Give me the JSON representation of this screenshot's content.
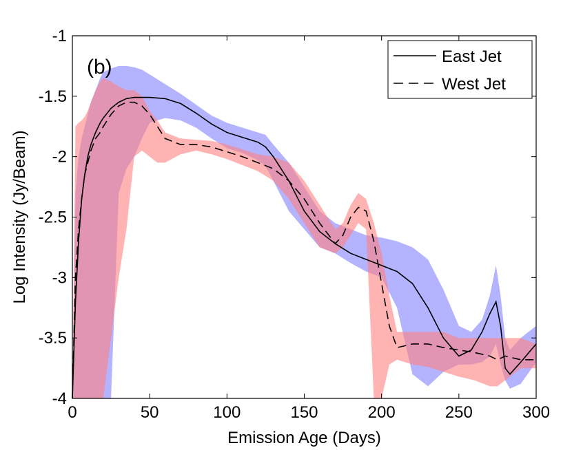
{
  "chart_data": {
    "type": "line",
    "panel_label": "(b)",
    "xlabel": "Emission Age (Days)",
    "ylabel": "Log Intensity (Jy/Beam)",
    "xlim": [
      0,
      300
    ],
    "ylim": [
      -4,
      -1
    ],
    "x_ticks": [
      0,
      50,
      100,
      150,
      200,
      250,
      300
    ],
    "y_ticks": [
      -4,
      -3.5,
      -3,
      -2.5,
      -2,
      -1.5,
      -1
    ],
    "x_tick_labels": [
      "0",
      "50",
      "100",
      "150",
      "200",
      "250",
      "300"
    ],
    "y_tick_labels": [
      "-4",
      "-3.5",
      "-3",
      "-2.5",
      "-2",
      "-1.5",
      "-1"
    ],
    "legend_position": "top-right",
    "series": [
      {
        "name": "East Jet",
        "line_style": "solid",
        "line_color": "#000000",
        "band_color": "#8080ff",
        "band_opacity": 0.6,
        "x": [
          0,
          2,
          4,
          6,
          8,
          10,
          12,
          15,
          18,
          20,
          25,
          30,
          35,
          40,
          45,
          50,
          60,
          70,
          80,
          90,
          100,
          110,
          120,
          125,
          130,
          140,
          150,
          160,
          170,
          180,
          190,
          200,
          210,
          220,
          230,
          240,
          250,
          258,
          265,
          270,
          274,
          277,
          280,
          283,
          290,
          300
        ],
        "values": [
          -4,
          -3.2,
          -2.7,
          -2.35,
          -2.15,
          -2.0,
          -1.9,
          -1.8,
          -1.72,
          -1.68,
          -1.6,
          -1.55,
          -1.52,
          -1.51,
          -1.51,
          -1.51,
          -1.52,
          -1.56,
          -1.64,
          -1.73,
          -1.8,
          -1.84,
          -1.88,
          -1.92,
          -2.0,
          -2.2,
          -2.45,
          -2.62,
          -2.72,
          -2.8,
          -2.85,
          -2.9,
          -2.95,
          -3.05,
          -3.25,
          -3.5,
          -3.65,
          -3.6,
          -3.45,
          -3.3,
          -3.2,
          -3.4,
          -3.75,
          -3.8,
          -3.7,
          -3.55
        ],
        "band_lower": [
          -4,
          -4,
          -4,
          -4,
          -4,
          -4,
          -4,
          -4,
          -4,
          -4,
          -4,
          -2.3,
          -2.1,
          -2.0,
          -1.85,
          -1.72,
          -1.68,
          -1.7,
          -1.76,
          -1.85,
          -1.93,
          -1.97,
          -2.03,
          -2.08,
          -2.2,
          -2.45,
          -2.6,
          -2.75,
          -2.8,
          -2.88,
          -2.95,
          -3.0,
          -3.25,
          -3.8,
          -3.9,
          -3.78,
          -3.72,
          -3.72,
          -3.7,
          -3.65,
          -3.55,
          -3.72,
          -3.85,
          -3.92,
          -3.88,
          -3.7
        ],
        "band_upper": [
          -4,
          -2.3,
          -2.0,
          -1.85,
          -1.75,
          -1.65,
          -1.55,
          -1.45,
          -1.35,
          -1.3,
          -1.27,
          -1.25,
          -1.25,
          -1.26,
          -1.28,
          -1.32,
          -1.4,
          -1.48,
          -1.57,
          -1.66,
          -1.72,
          -1.76,
          -1.8,
          -1.82,
          -1.9,
          -2.05,
          -2.25,
          -2.45,
          -2.55,
          -2.6,
          -2.65,
          -2.67,
          -2.7,
          -2.75,
          -2.85,
          -3.1,
          -3.4,
          -3.45,
          -3.35,
          -3.15,
          -2.9,
          -3.15,
          -3.5,
          -3.6,
          -3.5,
          -3.4
        ]
      },
      {
        "name": "West Jet",
        "line_style": "dashed",
        "line_color": "#000000",
        "band_color": "#ff8080",
        "band_opacity": 0.6,
        "x": [
          0,
          2,
          4,
          6,
          8,
          10,
          12,
          15,
          18,
          20,
          25,
          30,
          35,
          40,
          45,
          50,
          55,
          60,
          70,
          80,
          90,
          100,
          110,
          120,
          130,
          140,
          150,
          160,
          170,
          175,
          180,
          185,
          190,
          195,
          200,
          205,
          210,
          220,
          230,
          240,
          250,
          260,
          270,
          275,
          280,
          290,
          300
        ],
        "values": [
          -4,
          -3.0,
          -2.6,
          -2.35,
          -2.15,
          -2.05,
          -1.95,
          -1.85,
          -1.8,
          -1.75,
          -1.65,
          -1.58,
          -1.55,
          -1.55,
          -1.58,
          -1.65,
          -1.75,
          -1.85,
          -1.9,
          -1.9,
          -1.92,
          -1.96,
          -2.0,
          -2.05,
          -2.1,
          -2.2,
          -2.35,
          -2.55,
          -2.72,
          -2.65,
          -2.5,
          -2.42,
          -2.45,
          -2.7,
          -3.05,
          -3.4,
          -3.58,
          -3.55,
          -3.55,
          -3.58,
          -3.6,
          -3.62,
          -3.65,
          -3.68,
          -3.65,
          -3.68,
          -3.68
        ],
        "band_lower": [
          -4,
          -4,
          -4,
          -4,
          -4,
          -4,
          -4,
          -4,
          -4,
          -4,
          -3.5,
          -3.0,
          -2.6,
          -2.0,
          -1.95,
          -2.0,
          -2.05,
          -2.05,
          -1.98,
          -1.95,
          -1.98,
          -2.02,
          -2.07,
          -2.12,
          -2.2,
          -2.35,
          -2.55,
          -2.75,
          -2.8,
          -2.75,
          -2.65,
          -2.55,
          -2.6,
          -4.0,
          -4.0,
          -3.72,
          -3.68,
          -3.72,
          -3.74,
          -3.78,
          -3.82,
          -3.85,
          -3.9,
          -3.9,
          -3.85,
          -3.75,
          -3.75
        ],
        "band_upper": [
          -4,
          -1.75,
          -1.72,
          -1.7,
          -1.67,
          -1.62,
          -1.55,
          -1.45,
          -1.38,
          -1.35,
          -1.38,
          -1.42,
          -1.45,
          -1.45,
          -1.5,
          -1.62,
          -1.7,
          -1.8,
          -1.85,
          -1.86,
          -1.87,
          -1.9,
          -1.94,
          -1.98,
          -2.0,
          -2.05,
          -2.2,
          -2.4,
          -2.6,
          -2.55,
          -2.4,
          -2.3,
          -2.35,
          -2.55,
          -2.8,
          -3.15,
          -3.45,
          -3.45,
          -3.45,
          -3.45,
          -3.5,
          -3.5,
          -3.5,
          -3.5,
          -3.5,
          -3.5,
          -3.55
        ]
      }
    ]
  }
}
